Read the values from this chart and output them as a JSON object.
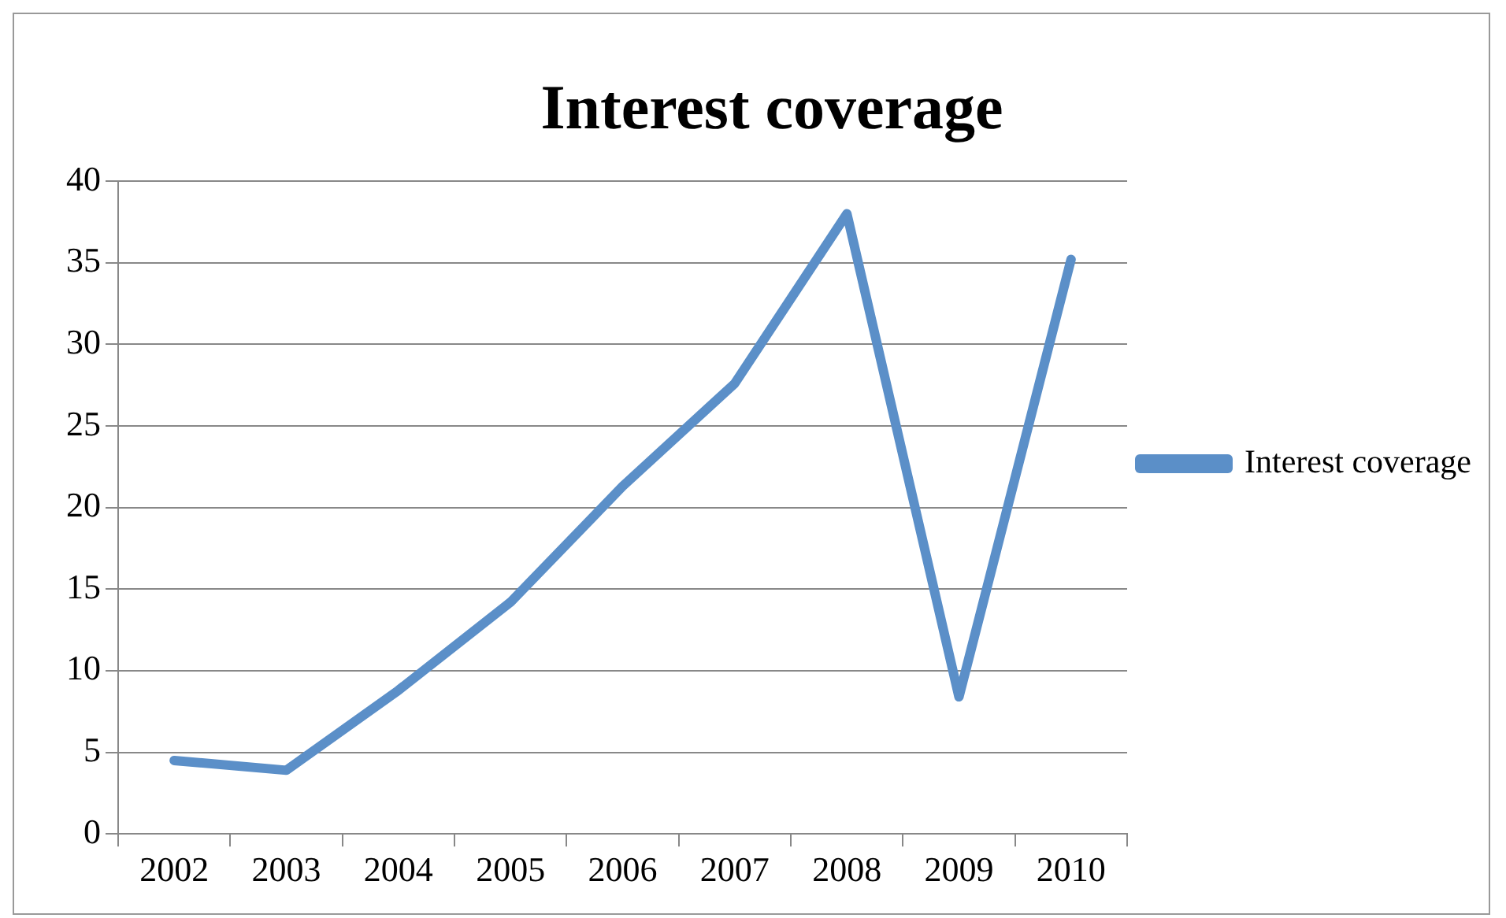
{
  "chart_data": {
    "type": "line",
    "title": "Interest coverage",
    "categories": [
      "2002",
      "2003",
      "2004",
      "2005",
      "2006",
      "2007",
      "2008",
      "2009",
      "2010"
    ],
    "series": [
      {
        "name": "Interest coverage",
        "color": "#5b8fc8",
        "values": [
          4.5,
          3.9,
          8.8,
          14.2,
          21.3,
          27.6,
          38,
          8.4,
          35.2
        ]
      }
    ],
    "ylim": [
      0,
      40
    ],
    "yticks": [
      0,
      5,
      10,
      15,
      20,
      25,
      30,
      35,
      40
    ],
    "grid": "y",
    "legend": "right",
    "marker": "none",
    "line_style": "solid"
  }
}
